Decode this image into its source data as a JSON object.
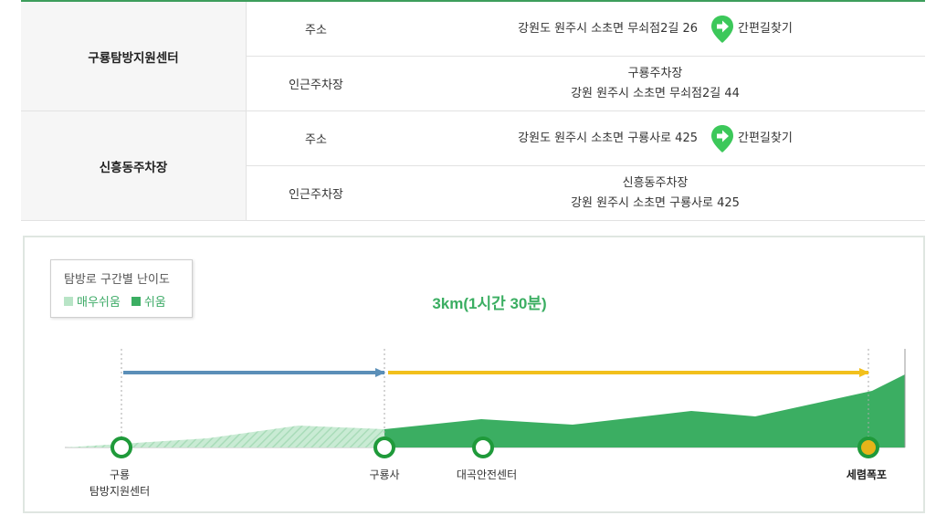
{
  "table": {
    "places": [
      {
        "name": "구룡탐방지원센터",
        "address_label": "주소",
        "address": "강원도 원주시 소초면 무쇠점2길 26",
        "route_label": "간편길찾기",
        "parking_label": "인근주차장",
        "parking_name": "구룡주차장",
        "parking_address": "강원 원주시 소초면 무쇠점2길 44"
      },
      {
        "name": "신흥동주차장",
        "address_label": "주소",
        "address": "강원도 원주시 소초면 구룡사로 425",
        "route_label": "간편길찾기",
        "parking_label": "인근주차장",
        "parking_name": "신흥동주차장",
        "parking_address": "강원 원주시 소초면 구룡사로 425"
      }
    ]
  },
  "profile": {
    "legend": {
      "title": "탐방로 구간별 난이도",
      "very_easy": "매우쉬움",
      "easy": "쉬움"
    },
    "distance_time": "3km(1시간 30분)",
    "stops": {
      "s1_line1": "구룡",
      "s1_line2": "탐방지원센터",
      "s2": "구룡사",
      "s3": "대곡안전센터",
      "s4": "세렴폭포"
    }
  },
  "colors": {
    "table_border": "#3d9e5c",
    "pin_green": "#3cc85a",
    "easy_green": "#3bae62",
    "very_easy_green": "#b8e4c6",
    "blue_arrow": "#5b8fb8",
    "yellow_arrow": "#f2c01c",
    "marker_ring": "#1f9a3a",
    "marker_end_fill": "#e6b419"
  },
  "icons": {
    "route_pin": "map-pin-arrow-icon"
  }
}
